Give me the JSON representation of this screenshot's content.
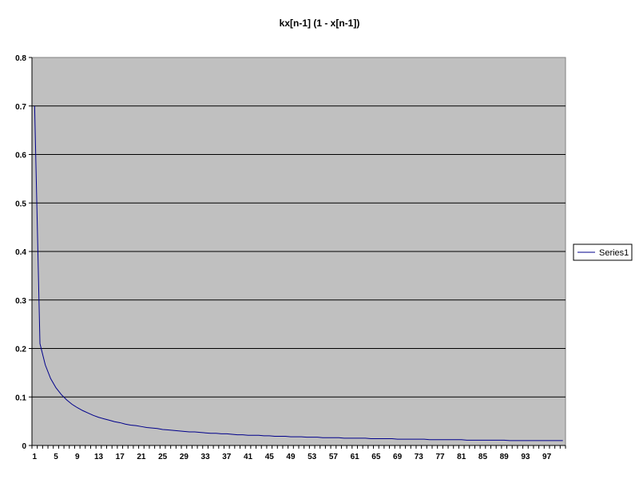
{
  "chart_data": {
    "type": "line",
    "title": "kx[n-1]  (1 - x[n-1])",
    "xlabel": "",
    "ylabel": "",
    "x": [
      1,
      2,
      3,
      4,
      5,
      6,
      7,
      8,
      9,
      10,
      11,
      12,
      13,
      14,
      15,
      16,
      17,
      18,
      19,
      20,
      21,
      22,
      23,
      24,
      25,
      26,
      27,
      28,
      29,
      30,
      31,
      32,
      33,
      34,
      35,
      36,
      37,
      38,
      39,
      40,
      41,
      42,
      43,
      44,
      45,
      46,
      47,
      48,
      49,
      50,
      51,
      52,
      53,
      54,
      55,
      56,
      57,
      58,
      59,
      60,
      61,
      62,
      63,
      64,
      65,
      66,
      67,
      68,
      69,
      70,
      71,
      72,
      73,
      74,
      75,
      76,
      77,
      78,
      79,
      80,
      81,
      82,
      83,
      84,
      85,
      86,
      87,
      88,
      89,
      90,
      91,
      92,
      93,
      94,
      95,
      96,
      97,
      98,
      99,
      100
    ],
    "x_tick_labels": [
      "1",
      "5",
      "9",
      "13",
      "17",
      "21",
      "25",
      "29",
      "33",
      "37",
      "41",
      "45",
      "49",
      "53",
      "57",
      "61",
      "65",
      "69",
      "73",
      "77",
      "81",
      "85",
      "89",
      "93",
      "97"
    ],
    "series": [
      {
        "name": "Series1",
        "color": "#00008b",
        "values": [
          0.7,
          0.21,
          0.166,
          0.138,
          0.119,
          0.105,
          0.094,
          0.085,
          0.078,
          0.072,
          0.067,
          0.062,
          0.058,
          0.055,
          0.052,
          0.049,
          0.047,
          0.044,
          0.042,
          0.041,
          0.039,
          0.037,
          0.036,
          0.035,
          0.033,
          0.032,
          0.031,
          0.03,
          0.029,
          0.028,
          0.028,
          0.027,
          0.026,
          0.025,
          0.025,
          0.024,
          0.024,
          0.023,
          0.022,
          0.022,
          0.021,
          0.021,
          0.021,
          0.02,
          0.02,
          0.019,
          0.019,
          0.019,
          0.018,
          0.018,
          0.018,
          0.017,
          0.017,
          0.017,
          0.016,
          0.016,
          0.016,
          0.016,
          0.015,
          0.015,
          0.015,
          0.015,
          0.015,
          0.014,
          0.014,
          0.014,
          0.014,
          0.014,
          0.013,
          0.013,
          0.013,
          0.013,
          0.013,
          0.013,
          0.012,
          0.012,
          0.012,
          0.012,
          0.012,
          0.012,
          0.012,
          0.011,
          0.011,
          0.011,
          0.011,
          0.011,
          0.011,
          0.011,
          0.011,
          0.01,
          0.01,
          0.01,
          0.01,
          0.01,
          0.01,
          0.01,
          0.01,
          0.01,
          0.01,
          0.01
        ]
      }
    ],
    "ylim": [
      0,
      0.8
    ],
    "y_ticks": [
      "0",
      "0.1",
      "0.2",
      "0.3",
      "0.4",
      "0.5",
      "0.6",
      "0.7",
      "0.8"
    ],
    "y_tick_values": [
      0,
      0.1,
      0.2,
      0.3,
      0.4,
      0.5,
      0.6,
      0.7,
      0.8
    ],
    "grid": true,
    "legend_position": "right",
    "plot_background": "#c0c0c0"
  }
}
